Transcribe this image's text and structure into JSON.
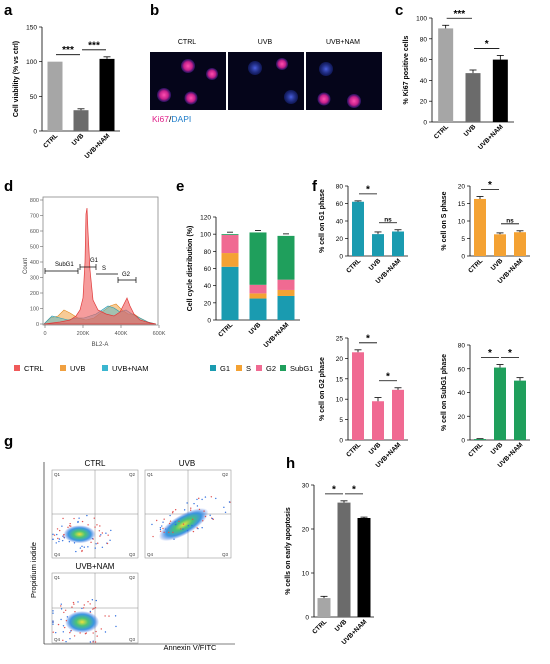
{
  "panel_letters": [
    "a",
    "b",
    "c",
    "d",
    "e",
    "f",
    "g",
    "h"
  ],
  "colors": {
    "ctrl_bar": "#a6a6a6",
    "uvb_bar": "#6b6b6b",
    "nam_bar": "#000000",
    "g1": "#1a9bb0",
    "s": "#f4a233",
    "g2": "#f06a92",
    "subg1": "#1f9f5c",
    "flow_ctrl": "#f05a5a",
    "flow_uvb": "#f0a040",
    "flow_nam": "#3bb6d0",
    "ki67": "#e0208a",
    "dapi": "#1a3aa8"
  },
  "panel_b": {
    "labels": [
      "CTRL",
      "UVB",
      "UVB+NAM"
    ],
    "stain_ki67": "Ki67",
    "stain_sep": "/",
    "stain_dapi": "DAPI"
  },
  "panel_d": {
    "ylabel": "Count",
    "xlabel": "BL2-A",
    "yticks": [
      "0",
      "100",
      "200",
      "300",
      "400",
      "500",
      "600",
      "700",
      "800"
    ],
    "xticks": [
      "0",
      "200K",
      "400K",
      "600K"
    ],
    "gates": [
      "SubG1",
      "G1",
      "S",
      "G2"
    ],
    "legend": [
      "CTRL",
      "UVB",
      "UVB+NAM"
    ]
  },
  "panel_e": {
    "legend": [
      "G1",
      "S",
      "G2",
      "SubG1"
    ]
  },
  "panel_g": {
    "titles": [
      "CTRL",
      "UVB",
      "UVB+NAM"
    ],
    "quadrants": [
      "Q1",
      "Q2",
      "Q3",
      "Q4"
    ],
    "ylabel": "Propidium iodide",
    "xlabel": "Annexin V/FITC"
  },
  "chart_data": [
    {
      "id": "a",
      "type": "bar",
      "categories": [
        "CTRL",
        "UVB",
        "UVB+NAM"
      ],
      "values": [
        100,
        30,
        104
      ],
      "errors": [
        0,
        2,
        3
      ],
      "ylabel": "Cell viability (% vs ctrl)",
      "ylim": [
        0,
        150
      ],
      "yticks": [
        "0",
        "50",
        "100",
        "150"
      ],
      "significance": [
        "***",
        "***"
      ]
    },
    {
      "id": "c",
      "type": "bar",
      "categories": [
        "CTRL",
        "UVB",
        "UVB+NAM"
      ],
      "values": [
        90,
        47,
        60
      ],
      "errors": [
        3,
        3,
        4
      ],
      "ylabel": "% Ki67 positive cells",
      "ylim": [
        0,
        100
      ],
      "yticks": [
        "0",
        "20",
        "40",
        "60",
        "80",
        "100"
      ],
      "significance": [
        "***",
        "*"
      ]
    },
    {
      "id": "e",
      "type": "bar",
      "stacked": true,
      "categories": [
        "CTRL",
        "UVB",
        "UVB+NAM"
      ],
      "series": [
        {
          "name": "G1",
          "values": [
            62,
            25,
            28
          ]
        },
        {
          "name": "S",
          "values": [
            16,
            6,
            7
          ]
        },
        {
          "name": "G2",
          "values": [
            21,
            10,
            12
          ]
        },
        {
          "name": "SubG1",
          "values": [
            1,
            61,
            51
          ]
        }
      ],
      "ylabel": "Cell cycle distribution (%)",
      "ylim": [
        0,
        120
      ],
      "yticks": [
        "0",
        "20",
        "40",
        "60",
        "80",
        "100",
        "120"
      ]
    },
    {
      "id": "f1",
      "type": "bar",
      "categories": [
        "CTRL",
        "UVB",
        "UVB+NAM"
      ],
      "values": [
        62,
        25,
        28
      ],
      "errors": [
        1,
        2.5,
        2
      ],
      "ylabel": "% cell on G1 phase",
      "ylim": [
        0,
        80
      ],
      "yticks": [
        "0",
        "20",
        "40",
        "60",
        "80"
      ],
      "significance": [
        "*",
        "ns"
      ]
    },
    {
      "id": "f2",
      "type": "bar",
      "categories": [
        "CTRL",
        "UVB",
        "UVB+NAM"
      ],
      "values": [
        16.3,
        6.2,
        6.8
      ],
      "errors": [
        0.7,
        0.4,
        0.4
      ],
      "ylabel": "% cell on S phase",
      "ylim": [
        0,
        20
      ],
      "yticks": [
        "0",
        "5",
        "10",
        "15",
        "20"
      ],
      "significance": [
        "*",
        "ns"
      ]
    },
    {
      "id": "f3",
      "type": "bar",
      "categories": [
        "CTRL",
        "UVB",
        "UVB+NAM"
      ],
      "values": [
        21.5,
        9.5,
        12.3
      ],
      "errors": [
        0.6,
        0.9,
        0.5
      ],
      "ylabel": "% cell on G2 phase",
      "ylim": [
        0,
        25
      ],
      "yticks": [
        "0",
        "5",
        "10",
        "15",
        "20",
        "25"
      ],
      "significance": [
        "*",
        "*"
      ]
    },
    {
      "id": "f4",
      "type": "bar",
      "categories": [
        "CTRL",
        "UVB",
        "UVB+NAM"
      ],
      "values": [
        0.8,
        61,
        50
      ],
      "errors": [
        0.3,
        2.5,
        2.5
      ],
      "ylabel": "% cell on SubG1 phase",
      "ylim": [
        0,
        80
      ],
      "yticks": [
        "0",
        "20",
        "40",
        "60",
        "80"
      ],
      "significance": [
        "*",
        "*"
      ]
    },
    {
      "id": "h",
      "type": "bar",
      "categories": [
        "CTRL",
        "UVB",
        "UVB+NAM"
      ],
      "values": [
        4.3,
        26,
        22.5
      ],
      "errors": [
        0.4,
        0.4,
        0.2
      ],
      "ylabel": "% cells on early apoptosis",
      "ylim": [
        0,
        30
      ],
      "yticks": [
        "0",
        "10",
        "20",
        "30"
      ],
      "significance": [
        "*",
        "*"
      ]
    }
  ]
}
